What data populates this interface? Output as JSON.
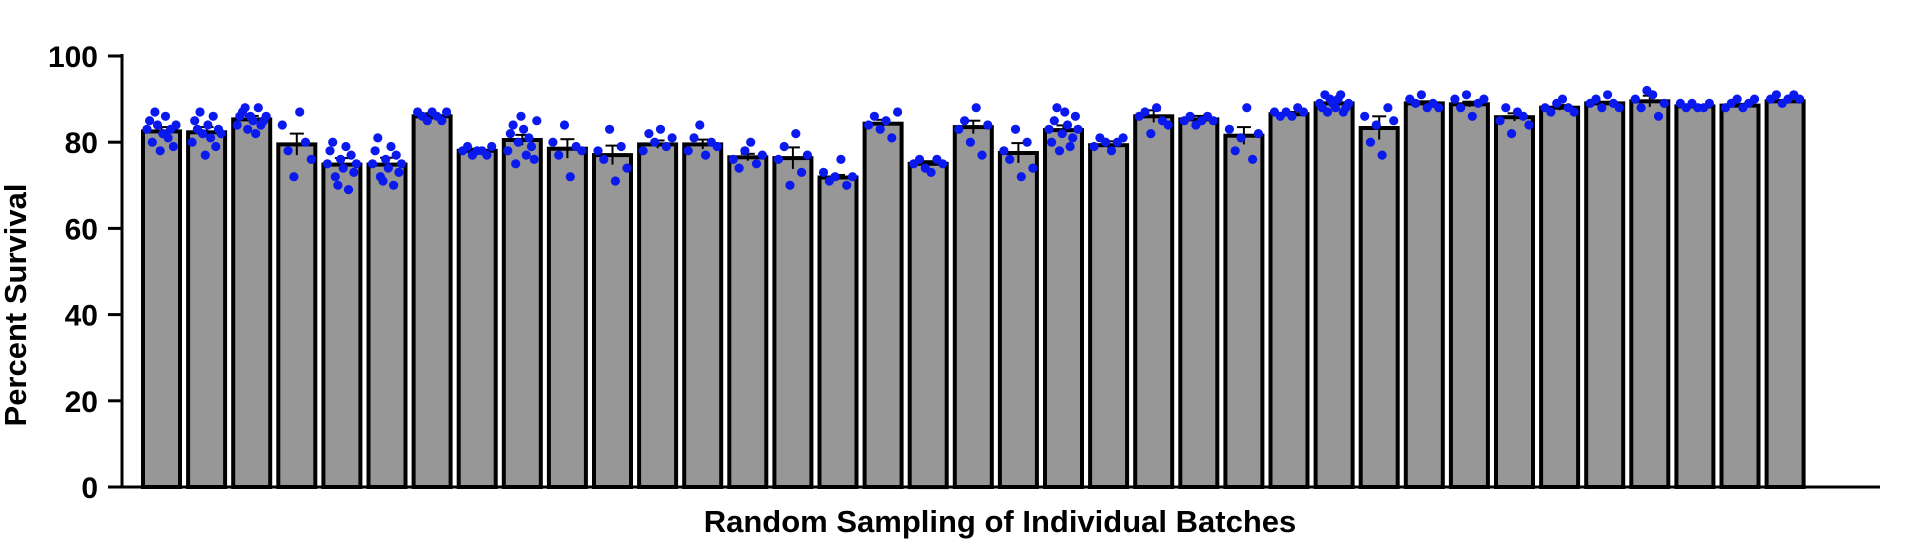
{
  "chart_data": {
    "type": "bar",
    "title": "",
    "xlabel": "Random Sampling of Individual Batches",
    "ylabel": "Percent Survival",
    "ylim": [
      0,
      100
    ],
    "yticks": [
      "0",
      "20",
      "40",
      "60",
      "80",
      "100"
    ],
    "grid": false,
    "legend": "none",
    "colors": {
      "bar_fill": "#979797",
      "bar_stroke": "#000000",
      "points": "#0a19ee",
      "axis": "#000000"
    },
    "series": [
      {
        "values": [
          82.5,
          82.3,
          85.3,
          79.5,
          74.8,
          74.8,
          86.0,
          78.0,
          80.5,
          78.5,
          77.0,
          79.5,
          79.5,
          76.5,
          76.3,
          71.8,
          84.3,
          75.0,
          83.5,
          77.5,
          82.8,
          79.3,
          86.0,
          85.3,
          81.5,
          86.5,
          89.0,
          83.3,
          89.0,
          88.8,
          85.8,
          88.0,
          89.0,
          89.5,
          88.3,
          88.5,
          89.5
        ],
        "errors": [
          1.0,
          1.2,
          0.8,
          2.5,
          1.5,
          1.6,
          0.7,
          0.5,
          1.2,
          2.2,
          2.2,
          0.9,
          1.1,
          0.8,
          2.5,
          0.6,
          0.9,
          0.6,
          1.5,
          2.3,
          1.1,
          0.9,
          1.4,
          0.8,
          2.0,
          0.5,
          0.6,
          2.7,
          0.5,
          0.6,
          0.9,
          0.6,
          0.4,
          1.3,
          0.3,
          0.4,
          0.3
        ],
        "points": [
          [
            83,
            85,
            80,
            87,
            84,
            78,
            82,
            86,
            81,
            83,
            79,
            84
          ],
          [
            80,
            85,
            83,
            87,
            82,
            77,
            84,
            81,
            86,
            79,
            83,
            82
          ],
          [
            84,
            86,
            87,
            88,
            83,
            86,
            85,
            82,
            88,
            84,
            85,
            86
          ],
          [
            84,
            78,
            72,
            87,
            80,
            76
          ],
          [
            75,
            78,
            80,
            72,
            70,
            76,
            74,
            79,
            69,
            77,
            73,
            75
          ],
          [
            75,
            78,
            81,
            72,
            71,
            76,
            74,
            79,
            70,
            77,
            73,
            75
          ],
          [
            87,
            86,
            85,
            87,
            86,
            85,
            87
          ],
          [
            78,
            79,
            77,
            78,
            78,
            77,
            79
          ],
          [
            78,
            82,
            84,
            75,
            80,
            86,
            83,
            77,
            81,
            79,
            76,
            85
          ],
          [
            80,
            77,
            84,
            72,
            79,
            78
          ],
          [
            78,
            76,
            83,
            71,
            79,
            74
          ],
          [
            78,
            82,
            80,
            83,
            79,
            81
          ],
          [
            78,
            81,
            84,
            77,
            80,
            79
          ],
          [
            76,
            74,
            78,
            80,
            75,
            77
          ],
          [
            76,
            79,
            70,
            82,
            73,
            77
          ],
          [
            73,
            71,
            72,
            76,
            70,
            72
          ],
          [
            84,
            86,
            83,
            85,
            81,
            87
          ],
          [
            75,
            76,
            74,
            73,
            76,
            75
          ],
          [
            83,
            85,
            80,
            88,
            77,
            84
          ],
          [
            78,
            76,
            83,
            72,
            80,
            74
          ],
          [
            83,
            80,
            85,
            88,
            78,
            82,
            87,
            84,
            79,
            81,
            86,
            83
          ],
          [
            79,
            81,
            80,
            78,
            80,
            81
          ],
          [
            86,
            87,
            82,
            88,
            85,
            84
          ],
          [
            85,
            86,
            84,
            85,
            86,
            85
          ],
          [
            83,
            78,
            81,
            88,
            76,
            82
          ],
          [
            87,
            86,
            87,
            86,
            88,
            87
          ],
          [
            89,
            88,
            91,
            87,
            90,
            89,
            88,
            90,
            91,
            87,
            88,
            89
          ],
          [
            86,
            80,
            84,
            77,
            88,
            85
          ],
          [
            90,
            89,
            91,
            88,
            89,
            88
          ],
          [
            90,
            88,
            91,
            86,
            89,
            90
          ],
          [
            85,
            88,
            82,
            87,
            86,
            84
          ],
          [
            88,
            87,
            89,
            90,
            88,
            87
          ],
          [
            89,
            90,
            88,
            91,
            89,
            88
          ],
          [
            90,
            88,
            92,
            91,
            86,
            89
          ],
          [
            89,
            88,
            89,
            88,
            88,
            89
          ],
          [
            88,
            89,
            90,
            88,
            89,
            90
          ],
          [
            90,
            91,
            89,
            90,
            91,
            90
          ]
        ]
      }
    ]
  }
}
